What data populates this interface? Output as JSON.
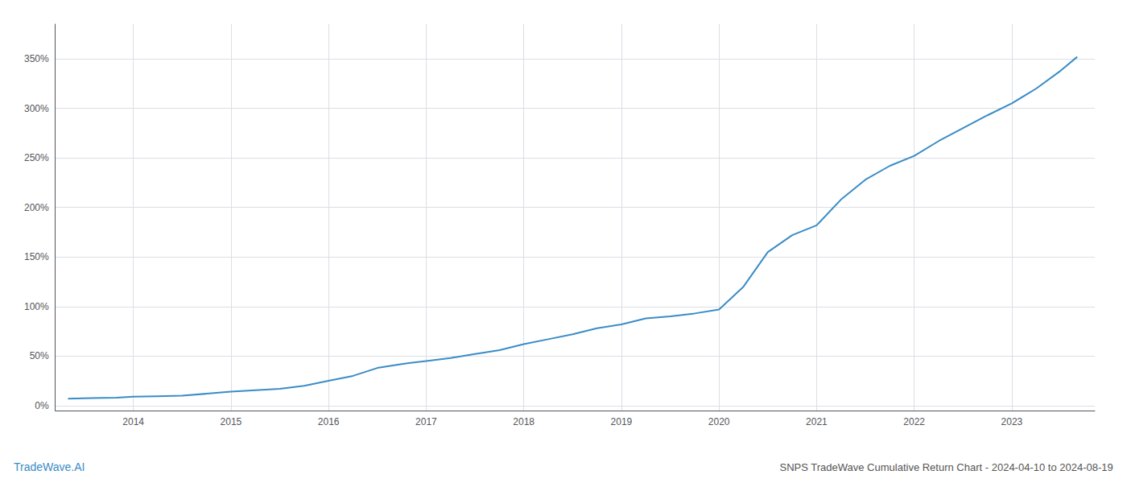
{
  "chart_data": {
    "type": "line",
    "title": "SNPS TradeWave Cumulative Return Chart - 2024-04-10 to 2024-08-19",
    "annotations": [
      "TradeWave.AI"
    ],
    "x": [
      2013.33,
      2013.58,
      2013.83,
      2014.0,
      2014.25,
      2014.5,
      2014.75,
      2015.0,
      2015.25,
      2015.5,
      2015.75,
      2016.0,
      2016.25,
      2016.5,
      2016.75,
      2017.0,
      2017.25,
      2017.5,
      2017.75,
      2018.0,
      2018.25,
      2018.5,
      2018.75,
      2019.0,
      2019.25,
      2019.5,
      2019.75,
      2020.0,
      2020.25,
      2020.5,
      2020.75,
      2021.0,
      2021.25,
      2021.5,
      2021.75,
      2022.0,
      2022.25,
      2022.5,
      2022.75,
      2023.0,
      2023.25,
      2023.5,
      2023.67
    ],
    "values": [
      0.07,
      0.075,
      0.08,
      0.09,
      0.095,
      0.1,
      0.12,
      0.14,
      0.155,
      0.17,
      0.2,
      0.25,
      0.3,
      0.38,
      0.42,
      0.45,
      0.48,
      0.52,
      0.56,
      0.62,
      0.67,
      0.72,
      0.78,
      0.82,
      0.88,
      0.9,
      0.93,
      0.97,
      1.2,
      1.55,
      1.72,
      1.82,
      2.08,
      2.28,
      2.42,
      2.52,
      2.67,
      2.8,
      2.93,
      3.05,
      3.2,
      3.38,
      3.52
    ],
    "color": "#3a8cc7",
    "xlim": [
      2013.2,
      2023.85
    ],
    "xticks": [
      2014,
      2015,
      2016,
      2017,
      2018,
      2019,
      2020,
      2021,
      2022,
      2023
    ],
    "ylim": [
      -0.05,
      3.85
    ],
    "yticks": [
      {
        "value": 0.0,
        "label": "0%"
      },
      {
        "value": 0.5,
        "label": "50%"
      },
      {
        "value": 1.0,
        "label": "100%"
      },
      {
        "value": 1.5,
        "label": "150%"
      },
      {
        "value": 2.0,
        "label": "200%"
      },
      {
        "value": 2.5,
        "label": "250%"
      },
      {
        "value": 3.0,
        "label": "300%"
      },
      {
        "value": 3.5,
        "label": "350%"
      }
    ],
    "grid": true
  }
}
